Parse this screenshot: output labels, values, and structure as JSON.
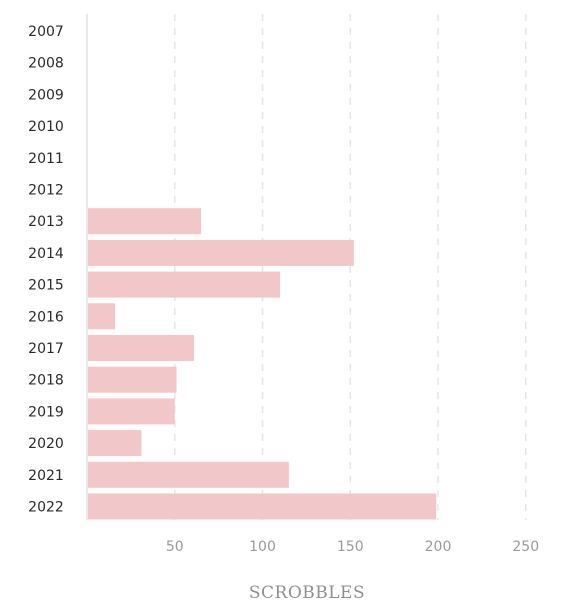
{
  "chart_data": {
    "type": "bar",
    "orientation": "horizontal",
    "categories": [
      "2007",
      "2008",
      "2009",
      "2010",
      "2011",
      "2012",
      "2013",
      "2014",
      "2015",
      "2016",
      "2017",
      "2018",
      "2019",
      "2020",
      "2021",
      "2022"
    ],
    "values": [
      0,
      0,
      0,
      0,
      0,
      0,
      65,
      152,
      110,
      16,
      61,
      51,
      50,
      31,
      115,
      199
    ],
    "xlabel": "SCROBBLES",
    "xlim": [
      0,
      250
    ],
    "xticks": [
      50,
      100,
      150,
      200,
      250
    ],
    "grid": true,
    "bar_color": "#f2c7c9"
  }
}
